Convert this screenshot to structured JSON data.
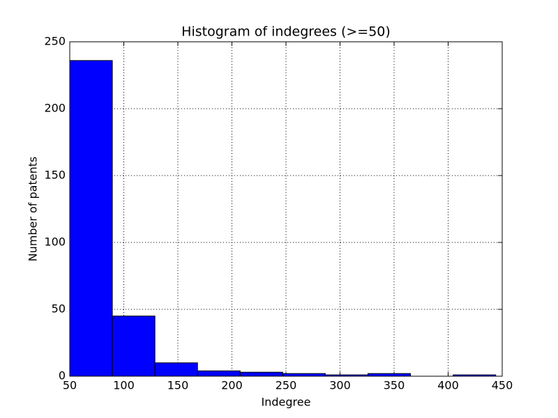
{
  "chart_data": {
    "type": "histogram",
    "title": "Histogram of indegrees (>=50)",
    "xlabel": "Indegree",
    "ylabel": "Number of patents",
    "bins": [
      50,
      89.4,
      128.8,
      168.2,
      207.6,
      247,
      286.4,
      325.8,
      365.2,
      404.6,
      444
    ],
    "values": [
      236,
      45,
      10,
      4,
      3,
      2,
      1,
      2,
      0,
      1
    ],
    "color": "#0000ff",
    "xlim": [
      50,
      450
    ],
    "xticks": [
      50,
      100,
      150,
      200,
      250,
      300,
      350,
      400,
      450
    ],
    "ylim": [
      0,
      250
    ],
    "yticks": [
      0,
      50,
      100,
      150,
      200,
      250
    ],
    "grid": true
  }
}
